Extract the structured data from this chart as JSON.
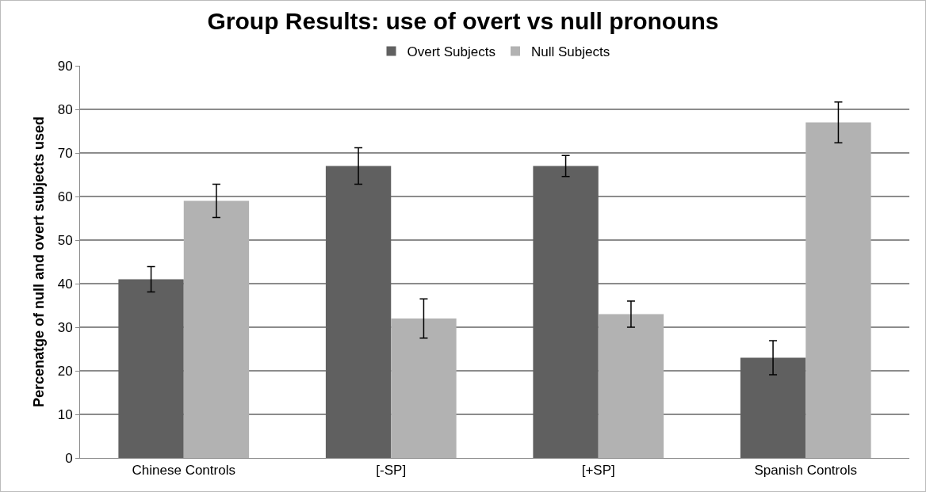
{
  "chart_data": {
    "type": "bar",
    "title": "Group Results: use of overt vs null pronouns",
    "ylabel": "Percenatge of null and overt subjects used",
    "categories": [
      "Chinese Controls",
      "[-SP]",
      "[+SP]",
      "Spanish Controls"
    ],
    "series": [
      {
        "name": "Overt Subjects",
        "color": "#606060",
        "values": [
          41,
          67,
          67,
          23
        ],
        "errors": [
          2.9,
          4.2,
          2.4,
          3.9
        ]
      },
      {
        "name": "Null Subjects",
        "color": "#b2b2b2",
        "values": [
          59,
          32,
          33,
          77
        ],
        "errors": [
          3.8,
          4.5,
          3,
          4.7
        ]
      }
    ],
    "ylim": [
      0,
      90
    ],
    "yticks": [
      0,
      10,
      20,
      30,
      40,
      50,
      60,
      70,
      80,
      90
    ],
    "grid": "y",
    "legend": "top"
  }
}
